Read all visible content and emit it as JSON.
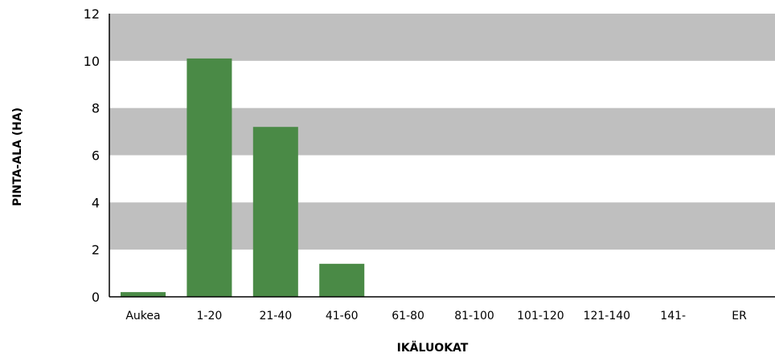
{
  "chart_data": {
    "type": "bar",
    "title": "",
    "xlabel": "IKÄLUOKAT",
    "ylabel": "PINTA-ALA (HA)",
    "ylim": [
      0,
      12
    ],
    "yticks": [
      0,
      2,
      4,
      6,
      8,
      10,
      12
    ],
    "categories": [
      "Aukea",
      "1-20",
      "21-40",
      "41-60",
      "61-80",
      "81-100",
      "101-120",
      "121-140",
      "141-",
      "ER"
    ],
    "values": [
      0.2,
      10.1,
      7.2,
      1.4,
      0,
      0,
      0,
      0,
      0,
      0
    ],
    "bar_color": "#4a8a46",
    "band_color": "#bfbfbf",
    "grid": "alternating horizontal bands",
    "legend": "none"
  }
}
